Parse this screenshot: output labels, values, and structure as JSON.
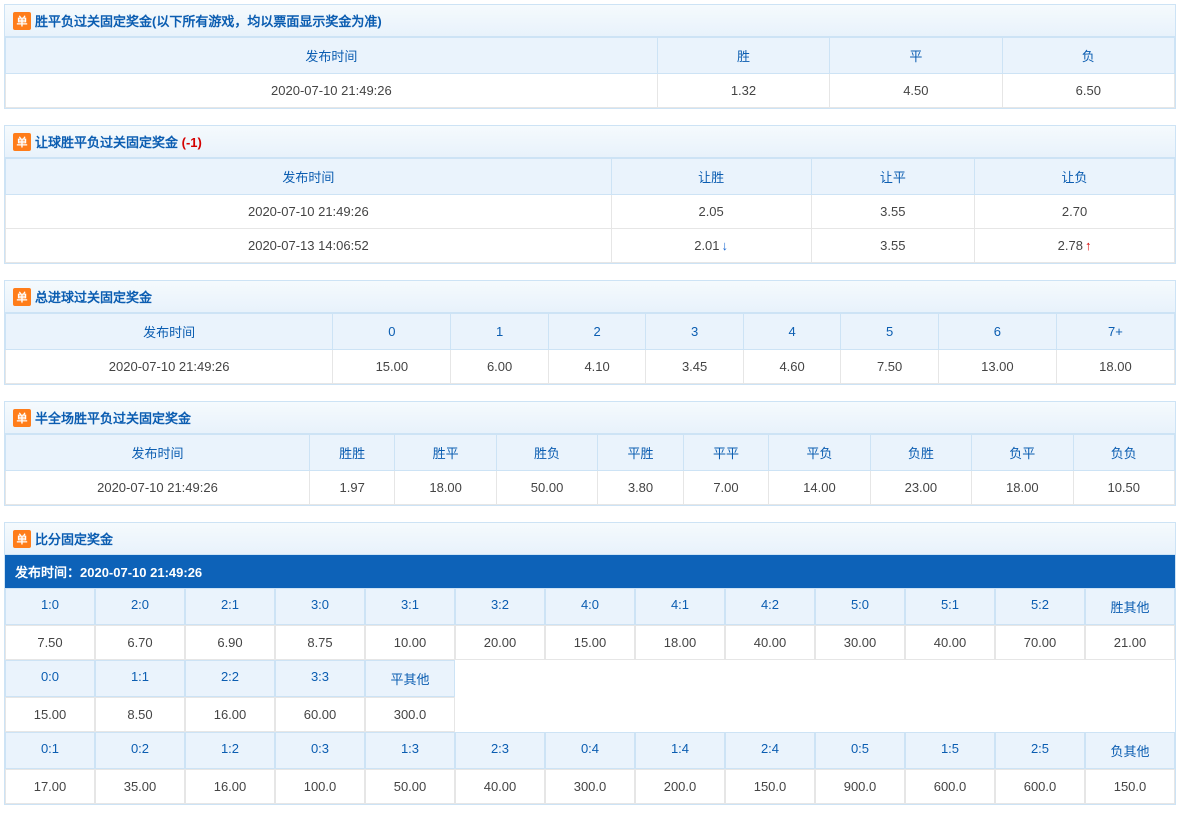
{
  "badge": "单",
  "sections": {
    "sp": {
      "title": "胜平负过关固定奖金(以下所有游戏，均以票面显示奖金为准)",
      "headers": [
        "发布时间",
        "胜",
        "平",
        "负"
      ],
      "rows": [
        [
          "2020-07-10 21:49:26",
          "1.32",
          "4.50",
          "6.50"
        ]
      ]
    },
    "rq": {
      "title": "让球胜平负过关固定奖金",
      "note": "(-1)",
      "headers": [
        "发布时间",
        "让胜",
        "让平",
        "让负"
      ],
      "rows": [
        {
          "cells": [
            "2020-07-10 21:49:26",
            "2.05",
            "3.55",
            "2.70"
          ],
          "arrows": [
            "",
            "",
            "",
            ""
          ]
        },
        {
          "cells": [
            "2020-07-13 14:06:52",
            "2.01",
            "3.55",
            "2.78"
          ],
          "arrows": [
            "",
            "down",
            "",
            "up"
          ]
        }
      ]
    },
    "zjq": {
      "title": "总进球过关固定奖金",
      "headers": [
        "发布时间",
        "0",
        "1",
        "2",
        "3",
        "4",
        "5",
        "6",
        "7+"
      ],
      "rows": [
        [
          "2020-07-10 21:49:26",
          "15.00",
          "6.00",
          "4.10",
          "3.45",
          "4.60",
          "7.50",
          "13.00",
          "18.00"
        ]
      ]
    },
    "bqc": {
      "title": "半全场胜平负过关固定奖金",
      "headers": [
        "发布时间",
        "胜胜",
        "胜平",
        "胜负",
        "平胜",
        "平平",
        "平负",
        "负胜",
        "负平",
        "负负"
      ],
      "rows": [
        [
          "2020-07-10 21:49:26",
          "1.97",
          "18.00",
          "50.00",
          "3.80",
          "7.00",
          "14.00",
          "23.00",
          "18.00",
          "10.50"
        ]
      ]
    },
    "bf": {
      "title": "比分固定奖金",
      "publish_label": "发布时间：",
      "publish_time": "2020-07-10 21:49:26",
      "win_h": [
        "1:0",
        "2:0",
        "2:1",
        "3:0",
        "3:1",
        "3:2",
        "4:0",
        "4:1",
        "4:2",
        "5:0",
        "5:1",
        "5:2",
        "胜其他"
      ],
      "win_v": [
        "7.50",
        "6.70",
        "6.90",
        "8.75",
        "10.00",
        "20.00",
        "15.00",
        "18.00",
        "40.00",
        "30.00",
        "40.00",
        "70.00",
        "21.00"
      ],
      "draw_h": [
        "0:0",
        "1:1",
        "2:2",
        "3:3",
        "平其他"
      ],
      "draw_v": [
        "15.00",
        "8.50",
        "16.00",
        "60.00",
        "300.0"
      ],
      "lose_h": [
        "0:1",
        "0:2",
        "1:2",
        "0:3",
        "1:3",
        "2:3",
        "0:4",
        "1:4",
        "2:4",
        "0:5",
        "1:5",
        "2:5",
        "负其他"
      ],
      "lose_v": [
        "17.00",
        "35.00",
        "16.00",
        "100.0",
        "50.00",
        "40.00",
        "300.0",
        "200.0",
        "150.0",
        "900.0",
        "600.0",
        "600.0",
        "150.0"
      ]
    }
  }
}
